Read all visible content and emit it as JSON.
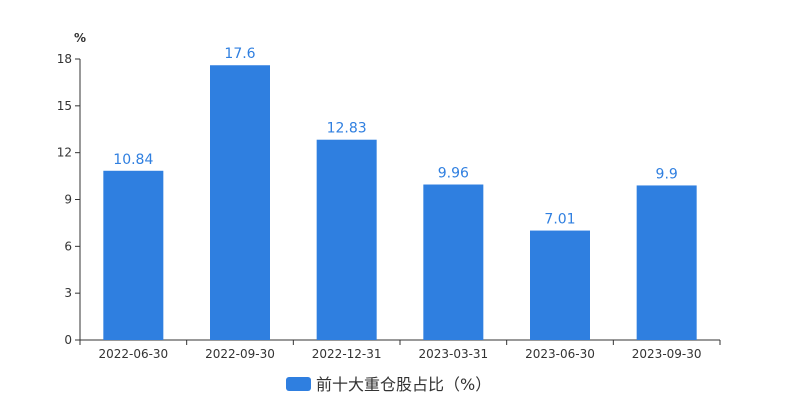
{
  "chart_data": {
    "type": "bar",
    "title": "",
    "xlabel": "",
    "ylabel": "",
    "y_unit": "%",
    "categories": [
      "2022-06-30",
      "2022-09-30",
      "2022-12-31",
      "2023-03-31",
      "2023-06-30",
      "2023-09-30"
    ],
    "series": [
      {
        "name": "前十大重仓股占比（%）",
        "values": [
          10.84,
          17.6,
          12.83,
          9.96,
          7.01,
          9.9
        ],
        "color": "#2f7fe0"
      }
    ],
    "ylim": [
      0,
      18
    ],
    "yticks": [
      0,
      3,
      6,
      9,
      12,
      15,
      18
    ],
    "data_labels": [
      "10.84",
      "17.6",
      "12.83",
      "9.96",
      "7.01",
      "9.9"
    ],
    "grid": false,
    "legend_position": "bottom-center"
  }
}
